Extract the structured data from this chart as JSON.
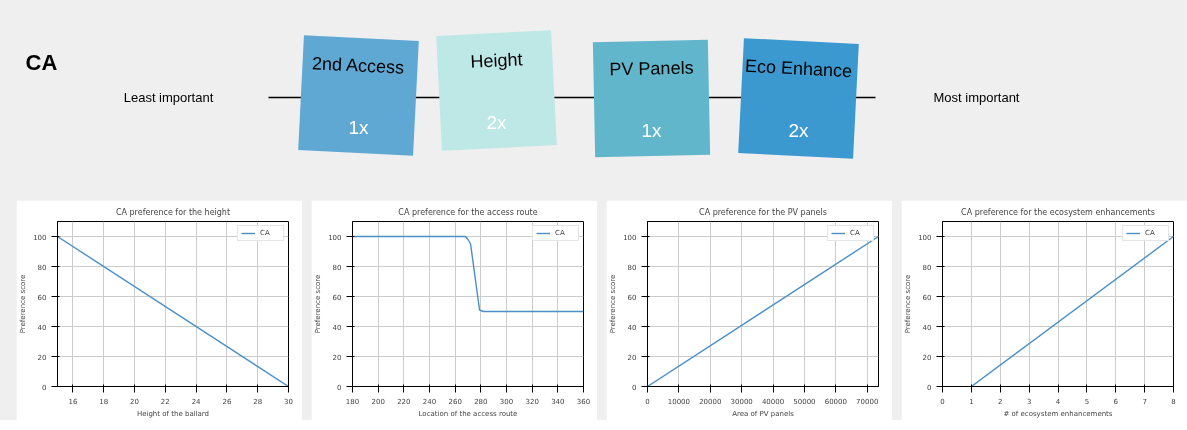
{
  "chart_data": [
    {
      "type": "other",
      "title": "CA",
      "annotations": [
        "Least important",
        "Most important"
      ],
      "categories": [
        "2nd Access",
        "Height",
        "PV Panels",
        "Eco Enhance"
      ],
      "value_labels": [
        "1x",
        "2x",
        "1x",
        "2x"
      ],
      "colors": [
        "#5fa8d3",
        "#bde8e6",
        "#62b6cb",
        "#3c99d0"
      ]
    },
    {
      "type": "line",
      "title": "CA preference for the height",
      "xlabel": "Height of the ballard",
      "ylabel": "Preference score",
      "series": [
        {
          "name": "CA",
          "color": "#4a8fc8",
          "x": [
            15,
            30
          ],
          "values": [
            100,
            0
          ]
        }
      ],
      "xlim": [
        15,
        30
      ],
      "xticks": [
        16,
        18,
        20,
        22,
        24,
        26,
        28,
        30
      ],
      "ylim": [
        0,
        110
      ],
      "yticks": [
        0,
        20,
        40,
        60,
        80,
        100
      ],
      "grid": true,
      "legend": "top right"
    },
    {
      "type": "line",
      "title": "CA preference for the access route",
      "xlabel": "Location of the access route",
      "ylabel": "Preference score",
      "series": [
        {
          "name": "CA",
          "color": "#4a8fc8",
          "x": [
            180,
            268,
            270,
            272,
            279,
            282,
            360
          ],
          "values": [
            100,
            100,
            98,
            95,
            51,
            50,
            50
          ]
        }
      ],
      "xlim": [
        180,
        360
      ],
      "xticks": [
        180,
        200,
        220,
        240,
        260,
        280,
        300,
        320,
        340,
        360
      ],
      "ylim": [
        0,
        110
      ],
      "yticks": [
        0,
        20,
        40,
        60,
        80,
        100
      ],
      "grid": true,
      "legend": "top right"
    },
    {
      "type": "line",
      "title": "CA preference for the PV panels",
      "xlabel": "Area of PV panels",
      "ylabel": "Preference score",
      "series": [
        {
          "name": "CA",
          "color": "#4a8fc8",
          "x": [
            0,
            73600
          ],
          "values": [
            0,
            100
          ]
        }
      ],
      "xlim": [
        0,
        73600
      ],
      "xticks": [
        0,
        10000,
        20000,
        30000,
        40000,
        50000,
        60000,
        70000
      ],
      "ylim": [
        0,
        110
      ],
      "yticks": [
        0,
        20,
        40,
        60,
        80,
        100
      ],
      "grid": true,
      "legend": "top right"
    },
    {
      "type": "line",
      "title": "CA preference for the ecosystem enhancements",
      "xlabel": "# of ecosystem enhancements",
      "ylabel": "Preference score",
      "series": [
        {
          "name": "CA",
          "color": "#4a8fc8",
          "x": [
            1,
            8
          ],
          "values": [
            0,
            100
          ]
        }
      ],
      "xlim": [
        0,
        8
      ],
      "xticks": [
        0,
        1,
        2,
        3,
        4,
        5,
        6,
        7,
        8
      ],
      "ylim": [
        0,
        110
      ],
      "yticks": [
        0,
        20,
        40,
        60,
        80,
        100
      ],
      "grid": true,
      "legend": "top right"
    }
  ]
}
